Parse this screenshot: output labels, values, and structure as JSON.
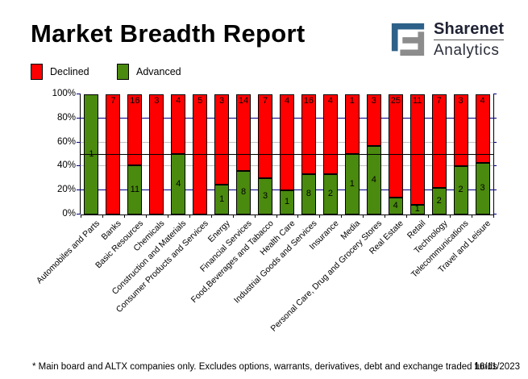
{
  "header": {
    "title": "Market Breadth Report",
    "logo": {
      "line1": "Sharenet",
      "line2": "Analytics",
      "mark_blue": "#2e6189",
      "mark_gray": "#8c8c8c"
    }
  },
  "legend": {
    "items": [
      {
        "label": "Declined",
        "color": "#ff0000"
      },
      {
        "label": "Advanced",
        "color": "#4a8a0e"
      }
    ]
  },
  "chart_data": {
    "type": "bar",
    "stacked": true,
    "percent": true,
    "title": "Market Breadth Report",
    "xlabel": "",
    "ylabel": "",
    "ylim": [
      0,
      100
    ],
    "categories": [
      "Automobiles and Parts",
      "Banks",
      "Basic Resources",
      "Chemicals",
      "Construction and Materials",
      "Consumer Products and Services",
      "Energy",
      "Financial Services",
      "Food,Beverages and Tabacco",
      "Health Care",
      "Industrial Goods and Services",
      "Insurance",
      "Media",
      "Personal Care, Drug and Grocery Stores",
      "Real Estate",
      "Retail",
      "Technology",
      "Telecommunications",
      "Travel and Leisure"
    ],
    "series": [
      {
        "name": "Declined",
        "color": "#ff0000",
        "values": [
          0,
          7,
          16,
          3,
          4,
          5,
          3,
          14,
          7,
          4,
          16,
          4,
          1,
          3,
          25,
          11,
          7,
          3,
          4
        ]
      },
      {
        "name": "Advanced",
        "color": "#4a8a0e",
        "values": [
          1,
          0,
          11,
          0,
          4,
          0,
          1,
          8,
          3,
          1,
          8,
          2,
          1,
          4,
          4,
          1,
          2,
          2,
          3
        ]
      }
    ],
    "y_ticks": [
      {
        "pct": 0,
        "label": "0%"
      },
      {
        "pct": 20,
        "label": "20%"
      },
      {
        "pct": 40,
        "label": "40%"
      },
      {
        "pct": 60,
        "label": "60%"
      },
      {
        "pct": 80,
        "label": "80%"
      },
      {
        "pct": 100,
        "label": "100%"
      }
    ],
    "gridlines": [
      {
        "pct": 20,
        "color": "#000080"
      },
      {
        "pct": 40,
        "color": "#c0c0c0"
      },
      {
        "pct": 60,
        "color": "#c0c0c0"
      },
      {
        "pct": 80,
        "color": "#000080"
      }
    ],
    "reference_line_pct": 50,
    "legend_position": "top-left",
    "grid": true
  },
  "footer": {
    "note": "* Main board and ALTX companies only. Excludes options, warrants, derivatives, debt and exchange traded funds",
    "date": "16/11/2023"
  }
}
